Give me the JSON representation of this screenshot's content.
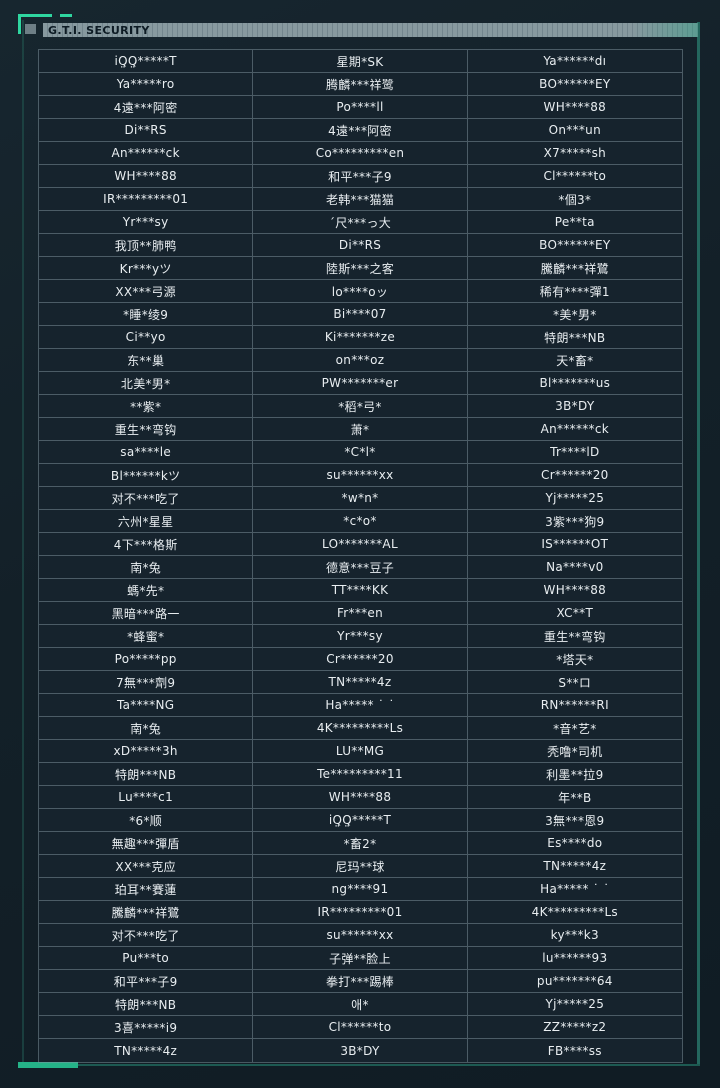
{
  "header": {
    "title": "G.T.I. SECURITY"
  },
  "colors": {
    "page_bg": "#12202a",
    "cell_bg": "#16232d",
    "grid_line": "#6e8088",
    "text": "#e9eef1",
    "accent_green": "#2fd6a0",
    "frame_teal": "#1d5a52",
    "header_bar_light": "#87999f",
    "header_bar_dark": "#72858d",
    "header_text": "#0d1b24"
  },
  "table": {
    "columns": 3,
    "rows": [
      [
        "iQ̤Q̤*****T",
        "星期*SK",
        "Ya******dı"
      ],
      [
        "Ya*****ro",
        "腾麟***祥鹭",
        "BO******EY"
      ],
      [
        "4遠***阿密",
        "Po****ll",
        "WH****88"
      ],
      [
        "Di**RS",
        "4遠***阿密",
        "On***un"
      ],
      [
        "An******ck",
        "Co*********en",
        "X7*****sh"
      ],
      [
        "WH****88",
        "和平***子9",
        "Cl******to"
      ],
      [
        "IR*********01",
        "老韩***猫猫",
        "*個3*"
      ],
      [
        "Yr***sy",
        "´尺***っ大",
        "Pe**ta"
      ],
      [
        "我顶**肺鸭",
        "Di**RS",
        "BO******EY"
      ],
      [
        "Kr***yツ",
        "陸斯***之客",
        "騰麟***祥鷺"
      ],
      [
        "XX***弓源",
        "lo****oッ",
        "稀有****彈1"
      ],
      [
        "*睡*绫9",
        "Bi****07",
        "*美*男*"
      ],
      [
        "Ci**yo",
        "Ki*******ze",
        "特朗***NB"
      ],
      [
        "东**巢",
        "on***oz",
        "天*畜*"
      ],
      [
        "北美*男*",
        "PW*******er",
        "Bl*******us"
      ],
      [
        "**紫*",
        "*稻*弓*",
        "3B*DY"
      ],
      [
        "重生**弯钩",
        "萧*",
        "An******ck"
      ],
      [
        "sa****le",
        "*C*l*",
        "Tr****lD"
      ],
      [
        "Bl******kツ",
        "su******xx",
        "Cr******20"
      ],
      [
        "对不***吃了",
        "*w*n*",
        "Yj*****25"
      ],
      [
        "六州*星星",
        "*c*o*",
        "3紫***狗9"
      ],
      [
        "4下***格斯",
        "LO*******AL",
        "IS******OT"
      ],
      [
        "南*兔",
        "德意***豆子",
        "Na****v0"
      ],
      [
        "螞*先*",
        "TT****KK",
        "WH****88"
      ],
      [
        "黑暗***路一",
        "Fr***en",
        "XC**T"
      ],
      [
        "*蜂蜜*",
        "Yr***sy",
        "重生**弯钩"
      ],
      [
        "Po*****pp",
        "Cr******20",
        "*塔天*"
      ],
      [
        "7無***劑9",
        "TN*****4z",
        "S**ロ"
      ],
      [
        "Ta****NG",
        "Ha***** ˙ ˙",
        "RN******RI"
      ],
      [
        "南*兔",
        "4K*********Ls",
        "*音*艺*"
      ],
      [
        "xD*****3h",
        "LU**MG",
        "秃噜*司机"
      ],
      [
        "特朗***NB",
        "Te*********11",
        "利墨**拉9"
      ],
      [
        "Lu****c1",
        "WH****88",
        "年**B"
      ],
      [
        "*6*顺",
        "iQ̤Q̤*****T",
        "3無***恩9"
      ],
      [
        "無趣***彈盾",
        "*畜2*",
        "Es****do"
      ],
      [
        "XX***克应",
        "尼玛**球",
        "TN*****4z"
      ],
      [
        "珀耳**賽蓮",
        "ng****91",
        "Ha***** ˙ ˙"
      ],
      [
        "騰麟***祥鷺",
        "IR*********01",
        "4K*********Ls"
      ],
      [
        "对不***吃了",
        "su******xx",
        "ky***k3"
      ],
      [
        "Pu***to",
        "子弹**脸上",
        "lu******93"
      ],
      [
        "和平***子9",
        "拳打***踢棒",
        "pu*******64"
      ],
      [
        "特朗***NB",
        "애*",
        "Yj*****25"
      ],
      [
        "3喜*****i9",
        "Cl******to",
        "ZZ*****z2"
      ],
      [
        "TN*****4z",
        "3B*DY",
        "FB****ss"
      ]
    ]
  }
}
